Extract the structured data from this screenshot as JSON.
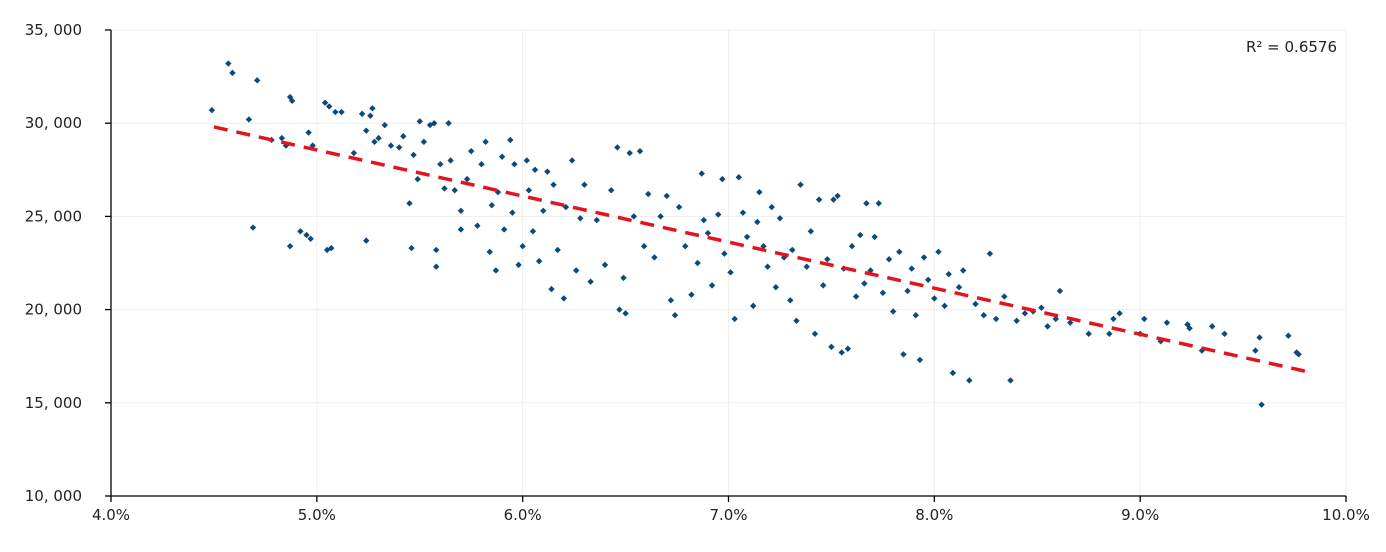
{
  "chart_data": {
    "type": "scatter",
    "title": "",
    "xlabel": "",
    "ylabel": "",
    "xlim": [
      4.0,
      10.0
    ],
    "ylim": [
      10000,
      35000
    ],
    "x_ticks": [
      4.0,
      5.0,
      6.0,
      7.0,
      8.0,
      9.0,
      10.0
    ],
    "x_tick_labels": [
      "4.0%",
      "5.0%",
      "6.0%",
      "7.0%",
      "8.0%",
      "9.0%",
      "10.0%"
    ],
    "y_ticks": [
      10000,
      15000,
      20000,
      25000,
      30000,
      35000
    ],
    "y_tick_labels": [
      "10, 000",
      "15, 000",
      "20, 000",
      "25, 000",
      "30, 000",
      "35, 000"
    ],
    "grid": true,
    "annotation": "R² = 0.6576",
    "colors": {
      "points": "#0d4a7c",
      "trendline": "#e3141d",
      "axis": "#000000",
      "grid": "#eeeeee"
    },
    "trendline": {
      "x": [
        4.5,
        9.8
      ],
      "y": [
        29800,
        16700
      ],
      "style": "dashed"
    },
    "points": [
      [
        4.49,
        30700
      ],
      [
        4.57,
        33200
      ],
      [
        4.59,
        32700
      ],
      [
        4.67,
        30200
      ],
      [
        4.69,
        24400
      ],
      [
        4.71,
        32300
      ],
      [
        4.78,
        29100
      ],
      [
        4.83,
        29200
      ],
      [
        4.85,
        28800
      ],
      [
        4.87,
        31400
      ],
      [
        4.88,
        31200
      ],
      [
        4.87,
        23400
      ],
      [
        4.92,
        24200
      ],
      [
        4.95,
        24000
      ],
      [
        4.97,
        23800
      ],
      [
        4.96,
        29500
      ],
      [
        4.98,
        28800
      ],
      [
        5.04,
        31100
      ],
      [
        5.06,
        30900
      ],
      [
        5.05,
        23200
      ],
      [
        5.07,
        23300
      ],
      [
        5.09,
        30600
      ],
      [
        5.12,
        30600
      ],
      [
        5.18,
        28400
      ],
      [
        5.22,
        30500
      ],
      [
        5.24,
        23700
      ],
      [
        5.24,
        29600
      ],
      [
        5.26,
        30400
      ],
      [
        5.27,
        30800
      ],
      [
        5.28,
        29000
      ],
      [
        5.3,
        29200
      ],
      [
        5.33,
        29900
      ],
      [
        5.36,
        28800
      ],
      [
        5.4,
        28700
      ],
      [
        5.42,
        29300
      ],
      [
        5.45,
        25700
      ],
      [
        5.46,
        23300
      ],
      [
        5.47,
        28300
      ],
      [
        5.49,
        27000
      ],
      [
        5.5,
        30100
      ],
      [
        5.52,
        29000
      ],
      [
        5.55,
        29900
      ],
      [
        5.57,
        30000
      ],
      [
        5.58,
        22300
      ],
      [
        5.58,
        23200
      ],
      [
        5.6,
        27800
      ],
      [
        5.62,
        26500
      ],
      [
        5.64,
        30000
      ],
      [
        5.65,
        28000
      ],
      [
        5.67,
        26400
      ],
      [
        5.7,
        25300
      ],
      [
        5.7,
        24300
      ],
      [
        5.73,
        27000
      ],
      [
        5.75,
        28500
      ],
      [
        5.78,
        24500
      ],
      [
        5.8,
        27800
      ],
      [
        5.82,
        29000
      ],
      [
        5.84,
        23100
      ],
      [
        5.85,
        25600
      ],
      [
        5.87,
        22100
      ],
      [
        5.88,
        26300
      ],
      [
        5.9,
        28200
      ],
      [
        5.91,
        24300
      ],
      [
        5.94,
        29100
      ],
      [
        5.95,
        25200
      ],
      [
        5.96,
        27800
      ],
      [
        5.98,
        22400
      ],
      [
        6.0,
        23400
      ],
      [
        6.02,
        28000
      ],
      [
        6.03,
        26400
      ],
      [
        6.05,
        24200
      ],
      [
        6.06,
        27500
      ],
      [
        6.08,
        22600
      ],
      [
        6.1,
        25300
      ],
      [
        6.12,
        27400
      ],
      [
        6.14,
        21100
      ],
      [
        6.15,
        26700
      ],
      [
        6.17,
        23200
      ],
      [
        6.2,
        20600
      ],
      [
        6.21,
        25500
      ],
      [
        6.24,
        28000
      ],
      [
        6.26,
        22100
      ],
      [
        6.28,
        24900
      ],
      [
        6.3,
        26700
      ],
      [
        6.33,
        21500
      ],
      [
        6.36,
        24800
      ],
      [
        6.4,
        22400
      ],
      [
        6.43,
        26400
      ],
      [
        6.46,
        28700
      ],
      [
        6.47,
        20000
      ],
      [
        6.49,
        21700
      ],
      [
        6.5,
        19800
      ],
      [
        6.52,
        28400
      ],
      [
        6.54,
        25000
      ],
      [
        6.57,
        28500
      ],
      [
        6.59,
        23400
      ],
      [
        6.61,
        26200
      ],
      [
        6.64,
        22800
      ],
      [
        6.67,
        25000
      ],
      [
        6.7,
        26100
      ],
      [
        6.72,
        20500
      ],
      [
        6.74,
        19700
      ],
      [
        6.76,
        25500
      ],
      [
        6.79,
        23400
      ],
      [
        6.82,
        20800
      ],
      [
        6.85,
        22500
      ],
      [
        6.87,
        27300
      ],
      [
        6.88,
        24800
      ],
      [
        6.9,
        24100
      ],
      [
        6.92,
        21300
      ],
      [
        6.95,
        25100
      ],
      [
        6.97,
        27000
      ],
      [
        6.98,
        23000
      ],
      [
        7.01,
        22000
      ],
      [
        7.03,
        19500
      ],
      [
        7.05,
        27100
      ],
      [
        7.07,
        25200
      ],
      [
        7.09,
        23900
      ],
      [
        7.12,
        20200
      ],
      [
        7.14,
        24700
      ],
      [
        7.15,
        26300
      ],
      [
        7.17,
        23400
      ],
      [
        7.19,
        22300
      ],
      [
        7.21,
        25500
      ],
      [
        7.23,
        21200
      ],
      [
        7.25,
        24900
      ],
      [
        7.27,
        22800
      ],
      [
        7.3,
        20500
      ],
      [
        7.31,
        23200
      ],
      [
        7.33,
        19400
      ],
      [
        7.35,
        26700
      ],
      [
        7.38,
        22300
      ],
      [
        7.4,
        24200
      ],
      [
        7.42,
        18700
      ],
      [
        7.44,
        25900
      ],
      [
        7.46,
        21300
      ],
      [
        7.48,
        22700
      ],
      [
        7.5,
        18000
      ],
      [
        7.51,
        25900
      ],
      [
        7.53,
        26100
      ],
      [
        7.55,
        17700
      ],
      [
        7.56,
        22200
      ],
      [
        7.58,
        17900
      ],
      [
        7.6,
        23400
      ],
      [
        7.62,
        20700
      ],
      [
        7.64,
        24000
      ],
      [
        7.66,
        21400
      ],
      [
        7.67,
        25700
      ],
      [
        7.69,
        22100
      ],
      [
        7.71,
        23900
      ],
      [
        7.73,
        25700
      ],
      [
        7.75,
        20900
      ],
      [
        7.78,
        22700
      ],
      [
        7.8,
        19900
      ],
      [
        7.83,
        23100
      ],
      [
        7.85,
        17600
      ],
      [
        7.87,
        21000
      ],
      [
        7.89,
        22200
      ],
      [
        7.91,
        19700
      ],
      [
        7.93,
        17300
      ],
      [
        7.95,
        22800
      ],
      [
        7.97,
        21600
      ],
      [
        8.0,
        20600
      ],
      [
        8.02,
        23100
      ],
      [
        8.05,
        20200
      ],
      [
        8.07,
        21900
      ],
      [
        8.09,
        16600
      ],
      [
        8.12,
        21200
      ],
      [
        8.14,
        22100
      ],
      [
        8.17,
        16200
      ],
      [
        8.2,
        20300
      ],
      [
        8.24,
        19700
      ],
      [
        8.27,
        23000
      ],
      [
        8.3,
        19500
      ],
      [
        8.34,
        20700
      ],
      [
        8.37,
        16200
      ],
      [
        8.4,
        19400
      ],
      [
        8.44,
        19800
      ],
      [
        8.48,
        19900
      ],
      [
        8.52,
        20100
      ],
      [
        8.55,
        19100
      ],
      [
        8.59,
        19500
      ],
      [
        8.61,
        21000
      ],
      [
        8.66,
        19300
      ],
      [
        8.75,
        18700
      ],
      [
        8.85,
        18700
      ],
      [
        8.87,
        19500
      ],
      [
        8.9,
        19800
      ],
      [
        9.0,
        18700
      ],
      [
        9.02,
        19500
      ],
      [
        9.1,
        18300
      ],
      [
        9.13,
        19300
      ],
      [
        9.23,
        19200
      ],
      [
        9.24,
        19000
      ],
      [
        9.3,
        17800
      ],
      [
        9.35,
        19100
      ],
      [
        9.41,
        18700
      ],
      [
        9.56,
        17800
      ],
      [
        9.58,
        18500
      ],
      [
        9.59,
        14900
      ],
      [
        9.72,
        18600
      ],
      [
        9.76,
        17700
      ],
      [
        9.77,
        17600
      ]
    ]
  }
}
